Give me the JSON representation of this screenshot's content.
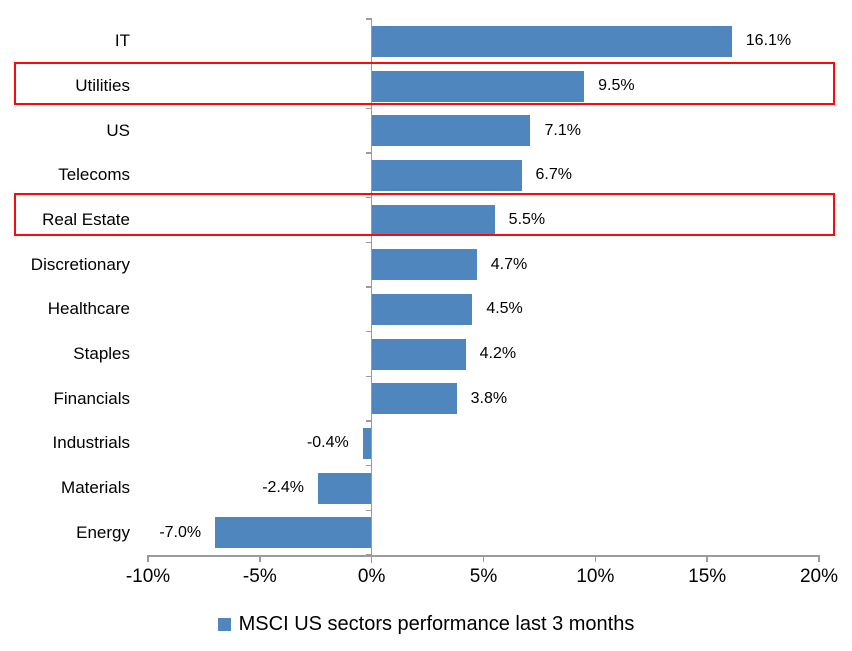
{
  "chart_data": {
    "type": "bar",
    "orientation": "horizontal",
    "title": "",
    "xlabel": "",
    "ylabel": "",
    "categories": [
      "IT",
      "Utilities",
      "US",
      "Telecoms",
      "Real Estate",
      "Discretionary",
      "Healthcare",
      "Staples",
      "Financials",
      "Industrials",
      "Materials",
      "Energy"
    ],
    "values": [
      16.1,
      9.5,
      7.1,
      6.7,
      5.5,
      4.7,
      4.5,
      4.2,
      3.8,
      -0.4,
      -2.4,
      -7.0
    ],
    "value_labels": [
      "16.1%",
      "9.5%",
      "7.1%",
      "6.7%",
      "5.5%",
      "4.7%",
      "4.5%",
      "4.2%",
      "3.8%",
      "-0.4%",
      "-2.4%",
      "-7.0%"
    ],
    "x_tick_labels": [
      "-10%",
      "-5%",
      "0%",
      "5%",
      "10%",
      "15%",
      "20%"
    ],
    "x_tick_values": [
      -10,
      -5,
      0,
      5,
      10,
      15,
      20
    ],
    "xlim": [
      -10,
      20
    ],
    "grid": "off",
    "legend_position": "bottom-center",
    "legend": "MSCI US sectors performance last 3 months",
    "bar_color": "#4E86BD",
    "axis_color": "#9B9B9B",
    "highlight_color": "#FA0A0A",
    "highlighted_categories": [
      "Utilities",
      "Real Estate"
    ]
  }
}
